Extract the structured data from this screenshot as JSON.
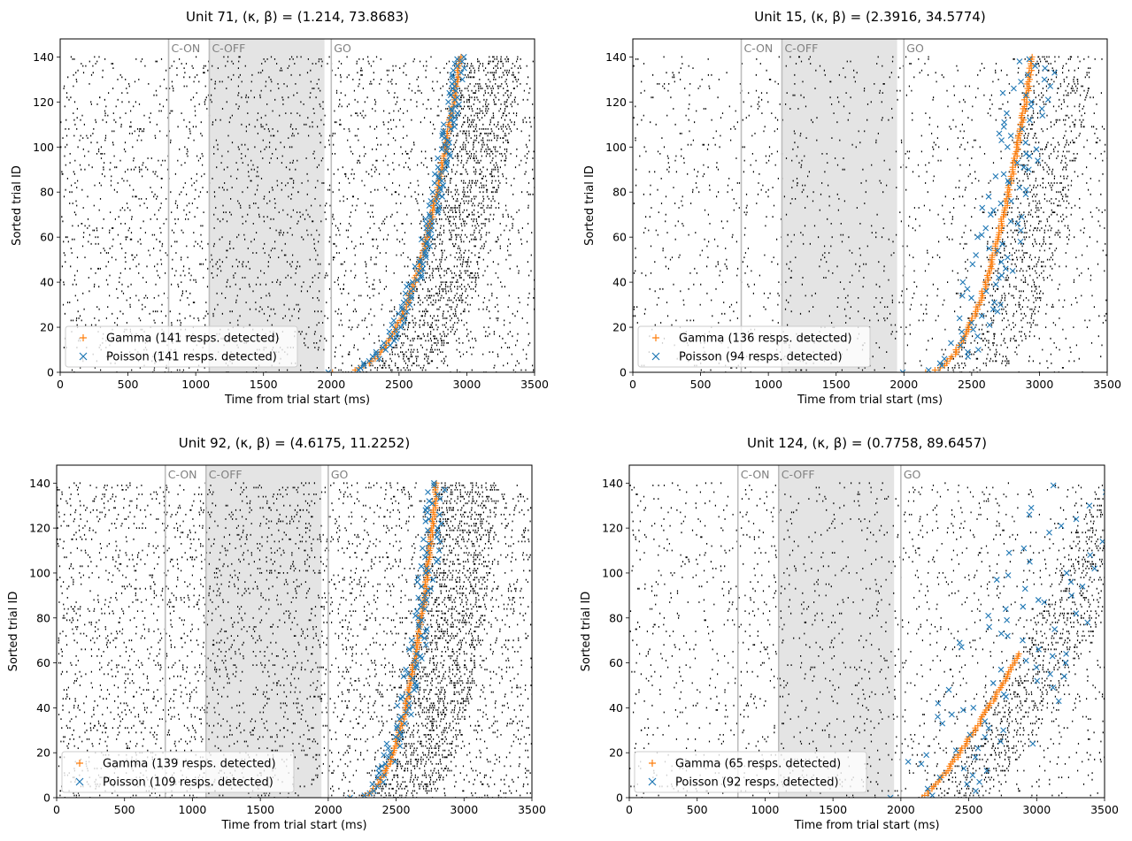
{
  "chart_data": [
    {
      "type": "scatter",
      "title": "Unit 71, (κ, β) = (1.214, 73.8683)",
      "xlabel": "Time from trial start (ms)",
      "ylabel": "Sorted trial ID",
      "xlim": [
        0,
        3500
      ],
      "ylim": [
        0,
        148
      ],
      "xticks": [
        0,
        500,
        1000,
        1500,
        2000,
        2500,
        3000,
        3500
      ],
      "yticks": [
        0,
        20,
        40,
        60,
        80,
        100,
        120,
        140
      ],
      "n_trials": 141,
      "events": [
        {
          "label": "C-ON",
          "t": 800
        },
        {
          "label": "C-OFF",
          "t": 1100
        },
        {
          "label": "GO",
          "t": 2000
        }
      ],
      "shaded_region": [
        1100,
        1950
      ],
      "background_rate": 0.14,
      "response_rate": 0.55,
      "response_curve": {
        "start": 2000,
        "end": 2950,
        "shape": 0.35
      },
      "series": [
        {
          "name": "Gamma (141 resps. detected)",
          "marker": "+",
          "color": "#ff7f0e",
          "jitter": 10,
          "trial_stride": 1
        },
        {
          "name": "Poisson (141 resps. detected)",
          "marker": "x",
          "color": "#1f77b4",
          "jitter": 45,
          "trial_stride": 1
        }
      ],
      "legend": "lower-left"
    },
    {
      "type": "scatter",
      "title": "Unit 15, (κ, β) = (2.3916, 34.5774)",
      "xlabel": "Time from trial start (ms)",
      "ylabel": "Sorted trial ID",
      "xlim": [
        0,
        3500
      ],
      "ylim": [
        0,
        148
      ],
      "xticks": [
        0,
        500,
        1000,
        1500,
        2000,
        2500,
        3000,
        3500
      ],
      "yticks": [
        0,
        20,
        40,
        60,
        80,
        100,
        120,
        140
      ],
      "n_trials": 141,
      "events": [
        {
          "label": "C-ON",
          "t": 800
        },
        {
          "label": "C-OFF",
          "t": 1100
        },
        {
          "label": "GO",
          "t": 2000
        }
      ],
      "shaded_region": [
        1100,
        1950
      ],
      "background_rate": 0.08,
      "response_rate": 0.35,
      "response_curve": {
        "start": 2150,
        "end": 2950,
        "shape": 0.45
      },
      "series": [
        {
          "name": "Gamma (136 resps. detected)",
          "marker": "+",
          "color": "#ff7f0e",
          "jitter": 12,
          "trial_stride": 1
        },
        {
          "name": "Poisson (94 resps. detected)",
          "marker": "x",
          "color": "#1f77b4",
          "jitter": 180,
          "trial_stride": 1.5
        }
      ],
      "legend": "lower-left"
    },
    {
      "type": "scatter",
      "title": "Unit 92, (κ, β) = (4.6175, 11.2252)",
      "xlabel": "Time from trial start (ms)",
      "ylabel": "Sorted trial ID",
      "xlim": [
        0,
        3500
      ],
      "ylim": [
        0,
        148
      ],
      "xticks": [
        0,
        500,
        1000,
        1500,
        2000,
        2500,
        3000,
        3500
      ],
      "yticks": [
        0,
        20,
        40,
        60,
        80,
        100,
        120,
        140
      ],
      "n_trials": 141,
      "events": [
        {
          "label": "C-ON",
          "t": 800
        },
        {
          "label": "C-OFF",
          "t": 1100
        },
        {
          "label": "GO",
          "t": 2000
        }
      ],
      "shaded_region": [
        1100,
        1950
      ],
      "background_rate": 0.2,
      "response_rate": 0.6,
      "response_curve": {
        "start": 2150,
        "end": 2800,
        "shape": 0.35
      },
      "series": [
        {
          "name": "Gamma (139 resps. detected)",
          "marker": "+",
          "color": "#ff7f0e",
          "jitter": 10,
          "trial_stride": 1
        },
        {
          "name": "Poisson (109 resps. detected)",
          "marker": "x",
          "color": "#1f77b4",
          "jitter": 70,
          "trial_stride": 1.3
        }
      ],
      "legend": "lower-left"
    },
    {
      "type": "scatter",
      "title": "Unit 124, (κ, β) = (0.7758, 89.6457)",
      "xlabel": "Time from trial start (ms)",
      "ylabel": "Sorted trial ID",
      "xlim": [
        0,
        3500
      ],
      "ylim": [
        0,
        148
      ],
      "xticks": [
        0,
        500,
        1000,
        1500,
        2000,
        2500,
        3000,
        3500
      ],
      "yticks": [
        0,
        20,
        40,
        60,
        80,
        100,
        120,
        140
      ],
      "n_trials": 141,
      "events": [
        {
          "label": "C-ON",
          "t": 800
        },
        {
          "label": "C-OFF",
          "t": 1100
        },
        {
          "label": "GO",
          "t": 2000
        }
      ],
      "shaded_region": [
        1100,
        1950
      ],
      "background_rate": 0.1,
      "response_rate": 0.4,
      "response_curve": {
        "start": 2150,
        "end": 3500,
        "shape": 0.8
      },
      "series": [
        {
          "name": "Gamma (65 resps. detected)",
          "marker": "+",
          "color": "#ff7f0e",
          "jitter": 10,
          "trial_stride": 1,
          "max_trial": 65
        },
        {
          "name": "Poisson (92 resps. detected)",
          "marker": "x",
          "color": "#1f77b4",
          "jitter": 500,
          "trial_stride": 1.5
        }
      ],
      "legend": "lower-left"
    }
  ]
}
